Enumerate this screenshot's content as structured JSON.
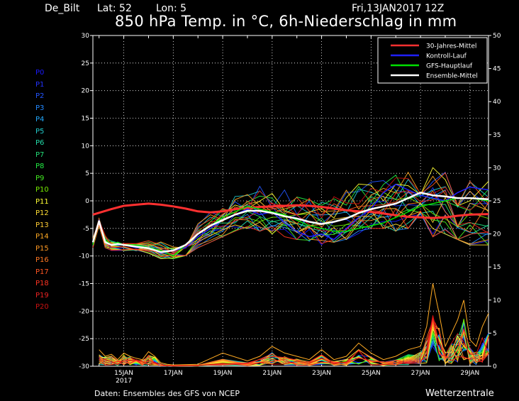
{
  "header": {
    "station": "De_Bilt",
    "lat_label": "Lat: 52",
    "lon_label": "Lon: 5",
    "run": "Fri,13JAN2017 12Z"
  },
  "chart_data": {
    "type": "line",
    "title": "850 hPa Temp. in °C, 6h-Niederschlag in mm",
    "xlabel": "",
    "ylabel": "",
    "x_range_days": [
      13.75,
      29.75
    ],
    "ylim": [
      -30,
      30
    ],
    "y2lim": [
      0,
      50
    ],
    "y_ticks": [
      30,
      25,
      20,
      15,
      10,
      5,
      0,
      -5,
      -10,
      -15,
      -20,
      -25,
      -30
    ],
    "y2_ticks": [
      50,
      45,
      40,
      35,
      30,
      25,
      20,
      15,
      10,
      5,
      0
    ],
    "x_ticks": [
      {
        "day": 15,
        "label": "15JAN",
        "sub": "2017"
      },
      {
        "day": 17,
        "label": "17JAN",
        "sub": ""
      },
      {
        "day": 19,
        "label": "19JAN",
        "sub": ""
      },
      {
        "day": 21,
        "label": "21JAN",
        "sub": ""
      },
      {
        "day": 23,
        "label": "23JAN",
        "sub": ""
      },
      {
        "day": 25,
        "label": "25JAN",
        "sub": ""
      },
      {
        "day": 27,
        "label": "27JAN",
        "sub": ""
      },
      {
        "day": 29,
        "label": "29JAN",
        "sub": ""
      }
    ],
    "grid": true,
    "legend_position": "top-right",
    "legend": [
      {
        "label": "30-Jahres-Mittel",
        "color": "#ff3030"
      },
      {
        "label": "Kontroll-Lauf",
        "color": "#2020ff"
      },
      {
        "label": "GFS-Hauptlauf",
        "color": "#00e000"
      },
      {
        "label": "Ensemble-Mittel",
        "color": "#ffffff"
      }
    ],
    "members": [
      {
        "name": "P0",
        "color": "#1a1aff"
      },
      {
        "name": "P1",
        "color": "#2233ff"
      },
      {
        "name": "P2",
        "color": "#2255ff"
      },
      {
        "name": "P3",
        "color": "#2288ff"
      },
      {
        "name": "P4",
        "color": "#22aaff"
      },
      {
        "name": "P5",
        "color": "#22cccc"
      },
      {
        "name": "P6",
        "color": "#22ddaa"
      },
      {
        "name": "P7",
        "color": "#22dd77"
      },
      {
        "name": "P8",
        "color": "#22ee44"
      },
      {
        "name": "P9",
        "color": "#44ee22"
      },
      {
        "name": "P10",
        "color": "#77ee00"
      },
      {
        "name": "P11",
        "color": "#ffff33"
      },
      {
        "name": "P12",
        "color": "#ffdd33"
      },
      {
        "name": "P13",
        "color": "#ffcc33"
      },
      {
        "name": "P14",
        "color": "#ffaa22"
      },
      {
        "name": "P15",
        "color": "#ff9922"
      },
      {
        "name": "P16",
        "color": "#ff7722"
      },
      {
        "name": "P17",
        "color": "#ff5522"
      },
      {
        "name": "P18",
        "color": "#ff3322"
      },
      {
        "name": "P19",
        "color": "#ee2222"
      },
      {
        "name": "P20",
        "color": "#cc1111"
      }
    ],
    "series": [
      {
        "name": "30-Jahres-Mittel",
        "color": "#ff3030",
        "width": 3,
        "x": [
          13.75,
          14.5,
          15.0,
          15.5,
          16.0,
          16.5,
          17.0,
          17.5,
          18.0,
          18.5,
          19.0,
          19.5,
          20.0,
          20.5,
          21.0,
          21.5,
          22.0,
          22.5,
          23.0,
          23.5,
          24.0,
          24.5,
          25.0,
          25.5,
          26.0,
          26.5,
          27.0,
          27.5,
          28.0,
          28.5,
          29.0,
          29.75
        ],
        "y": [
          -2.5,
          -1.5,
          -0.9,
          -0.7,
          -0.5,
          -0.7,
          -1.0,
          -1.4,
          -1.9,
          -2.1,
          -1.9,
          -1.5,
          -1.3,
          -1.1,
          -1.0,
          -0.9,
          -0.8,
          -0.9,
          -1.1,
          -1.4,
          -1.7,
          -1.9,
          -2.0,
          -2.3,
          -2.6,
          -2.9,
          -3.0,
          -3.1,
          -3.0,
          -2.7,
          -2.5,
          -2.4
        ]
      },
      {
        "name": "Kontroll-Lauf",
        "color": "#2020ff",
        "width": 1.5,
        "x": [
          13.75,
          14.0,
          14.25,
          14.5,
          14.75,
          15.0,
          15.5,
          16.0,
          16.5,
          17.0,
          17.5,
          18.0,
          18.5,
          19.0,
          19.5,
          20.0,
          20.5,
          21.0,
          21.5,
          22.0,
          22.5,
          23.0,
          23.5,
          24.0,
          24.5,
          25.0,
          25.5,
          26.0,
          26.5,
          27.0,
          27.5,
          28.0,
          28.5,
          29.0,
          29.75
        ],
        "y": [
          -7.5,
          -3.5,
          -7.5,
          -8.0,
          -7.5,
          -8.0,
          -8.5,
          -8.5,
          -9.5,
          -9.0,
          -8.5,
          -6.5,
          -5.0,
          -3.5,
          -2.5,
          -1.5,
          -2.5,
          -2.0,
          -4.0,
          -5.5,
          -6.5,
          -6.0,
          -7.0,
          -5.0,
          -3.0,
          -1.5,
          1.5,
          3.0,
          2.0,
          1.0,
          0.5,
          0.0,
          1.5,
          2.5,
          2.0
        ]
      },
      {
        "name": "GFS-Hauptlauf",
        "color": "#00e000",
        "width": 1.5,
        "x": [
          13.75,
          14.0,
          14.25,
          14.5,
          14.75,
          15.0,
          15.5,
          16.0,
          16.5,
          17.0,
          17.5,
          18.0,
          18.5,
          19.0,
          19.5,
          20.0,
          20.5,
          21.0,
          21.5,
          22.0,
          22.5,
          23.0,
          23.5,
          24.0,
          24.5,
          25.0,
          25.5,
          26.0,
          26.5,
          27.0,
          27.5,
          28.0,
          28.5,
          29.0,
          29.75
        ],
        "y": [
          -8.0,
          -3.8,
          -7.0,
          -8.0,
          -7.5,
          -8.0,
          -8.0,
          -8.5,
          -9.0,
          -10.0,
          -8.0,
          -6.0,
          -4.5,
          -3.0,
          -2.0,
          -1.0,
          -1.5,
          -2.0,
          -2.5,
          -3.5,
          -4.5,
          -5.0,
          -5.5,
          -5.5,
          -5.0,
          -4.5,
          -4.0,
          -3.0,
          -2.0,
          -1.0,
          -0.5,
          0.0,
          0.5,
          0.5,
          0.0
        ]
      },
      {
        "name": "Ensemble-Mittel",
        "color": "#ffffff",
        "width": 2.5,
        "x": [
          13.75,
          14.0,
          14.25,
          14.5,
          14.75,
          15.0,
          15.5,
          16.0,
          16.5,
          17.0,
          17.5,
          18.0,
          18.5,
          19.0,
          19.5,
          20.0,
          20.5,
          21.0,
          21.5,
          22.0,
          22.5,
          23.0,
          23.5,
          24.0,
          24.5,
          25.0,
          25.5,
          26.0,
          26.5,
          27.0,
          27.5,
          28.0,
          28.5,
          29.0,
          29.75
        ],
        "y": [
          -7.5,
          -3.7,
          -7.5,
          -8.0,
          -7.8,
          -8.0,
          -8.3,
          -8.6,
          -9.3,
          -9.0,
          -8.0,
          -6.0,
          -4.5,
          -3.5,
          -2.5,
          -1.8,
          -1.8,
          -2.2,
          -2.8,
          -3.2,
          -3.8,
          -4.2,
          -3.8,
          -3.2,
          -2.2,
          -1.5,
          -1.0,
          -0.5,
          0.5,
          1.5,
          1.0,
          0.8,
          0.5,
          0.5,
          0.3
        ]
      }
    ],
    "ensemble_temperature_band": {
      "x": [
        13.75,
        14.0,
        14.25,
        14.5,
        15.0,
        15.5,
        16.0,
        16.5,
        17.0,
        17.5,
        18.0,
        18.5,
        19.0,
        19.5,
        20.0,
        20.5,
        21.0,
        21.5,
        22.0,
        22.5,
        23.0,
        23.5,
        24.0,
        24.5,
        25.0,
        25.5,
        26.0,
        26.5,
        27.0,
        27.5,
        28.0,
        28.5,
        29.0,
        29.75
      ],
      "low": [
        -8.5,
        -4.5,
        -8.5,
        -9.0,
        -9.0,
        -9.5,
        -9.5,
        -10.5,
        -10.5,
        -10.0,
        -8.5,
        -7.5,
        -6.5,
        -5.5,
        -5.0,
        -5.5,
        -6.0,
        -6.5,
        -7.0,
        -7.5,
        -8.0,
        -7.5,
        -7.0,
        -6.0,
        -5.0,
        -5.0,
        -5.5,
        -5.0,
        -5.5,
        -6.5,
        -6.0,
        -7.0,
        -8.0,
        -8.0
      ],
      "high": [
        -6.5,
        -3.0,
        -6.0,
        -7.0,
        -7.0,
        -7.0,
        -7.0,
        -7.0,
        -8.0,
        -6.5,
        -3.5,
        -1.5,
        -0.5,
        1.5,
        2.5,
        3.5,
        3.0,
        3.0,
        2.5,
        1.5,
        1.0,
        2.0,
        3.0,
        4.0,
        5.0,
        5.5,
        6.5,
        7.0,
        8.5,
        8.0,
        7.0,
        6.5,
        6.0,
        6.0
      ]
    },
    "ensemble_precipitation_mm": {
      "x": [
        14.0,
        14.25,
        14.5,
        14.75,
        15.0,
        15.25,
        15.5,
        15.75,
        16.0,
        16.25,
        16.5,
        16.75,
        17.0,
        18.0,
        19.0,
        20.0,
        20.5,
        21.0,
        21.5,
        22.0,
        22.5,
        23.0,
        23.5,
        24.0,
        24.5,
        25.0,
        25.5,
        26.0,
        26.5,
        27.0,
        27.25,
        27.5,
        27.75,
        28.0,
        28.25,
        28.5,
        28.75,
        29.0,
        29.25,
        29.5,
        29.75
      ],
      "max": [
        2.5,
        1.5,
        1.8,
        1.0,
        2.0,
        1.5,
        1.2,
        1.0,
        2.2,
        1.5,
        0.5,
        0.3,
        0.2,
        0.3,
        2.0,
        0.8,
        1.5,
        3.0,
        2.0,
        1.5,
        1.0,
        2.5,
        1.0,
        1.5,
        3.5,
        2.0,
        1.0,
        1.5,
        2.5,
        3.0,
        6.0,
        12.5,
        8.0,
        3.0,
        5.0,
        7.0,
        10.0,
        4.0,
        3.0,
        6.0,
        8.0
      ],
      "mid": [
        1.0,
        0.8,
        0.9,
        0.5,
        1.0,
        0.8,
        0.6,
        0.5,
        1.0,
        0.8,
        0.2,
        0.1,
        0.1,
        0.1,
        0.6,
        0.3,
        0.6,
        1.2,
        0.8,
        0.6,
        0.4,
        1.0,
        0.4,
        0.6,
        1.4,
        0.8,
        0.4,
        0.6,
        1.0,
        1.2,
        2.4,
        4.5,
        3.2,
        1.2,
        2.0,
        2.8,
        4.0,
        1.6,
        1.2,
        2.4,
        3.2
      ]
    }
  },
  "footer": {
    "source": "Daten: Ensembles des GFS von NCEP",
    "brand": "Wetterzentrale"
  }
}
